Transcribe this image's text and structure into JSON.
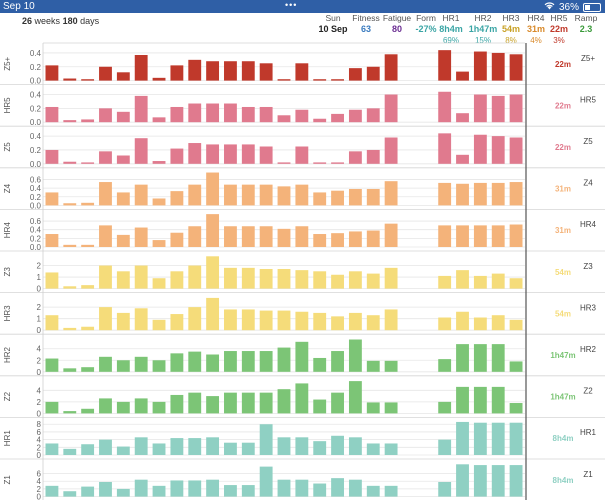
{
  "status_bar": {
    "time": "Sep 10",
    "dots": "•••",
    "battery_percent": "36%",
    "battery_level": 0.36
  },
  "header": {
    "weeks": "26",
    "weeks_label": "weeks",
    "days": "180",
    "days_label": "days",
    "columns": [
      {
        "key": "sun",
        "label": "Sun",
        "value": "10 Sep",
        "pct": "",
        "color": "#222222"
      },
      {
        "key": "fitness",
        "label": "Fitness",
        "value": "63",
        "pct": "",
        "color": "#3a7bbf"
      },
      {
        "key": "fatigue",
        "label": "Fatigue",
        "value": "80",
        "pct": "",
        "color": "#6a2c91"
      },
      {
        "key": "form",
        "label": "Form",
        "value": "-27%",
        "pct": "",
        "color": "#3aa5a5"
      },
      {
        "key": "hr1",
        "label": "HR1",
        "value": "8h4m",
        "pct": "69%",
        "color": "#3aa5a5"
      },
      {
        "key": "hr2",
        "label": "HR2",
        "value": "1h47m",
        "pct": "15%",
        "color": "#3aa5a5"
      },
      {
        "key": "hr3",
        "label": "HR3",
        "value": "54m",
        "pct": "8%",
        "color": "#c9a227"
      },
      {
        "key": "hr4",
        "label": "HR4",
        "value": "31m",
        "pct": "4%",
        "color": "#d98a2b"
      },
      {
        "key": "hr5",
        "label": "HR5",
        "value": "22m",
        "pct": "3%",
        "color": "#c0392b"
      },
      {
        "key": "ramp",
        "label": "Ramp",
        "value": "2.3",
        "pct": "",
        "color": "#3a9a3a"
      }
    ]
  },
  "chart_data": [
    {
      "type": "bar",
      "title": "Z5+",
      "color": "#c0392b",
      "right_value": "22m",
      "right_label": "Z5+",
      "yticks": [
        0,
        0.2,
        0.4
      ],
      "ylim": [
        0,
        0.5
      ],
      "values": [
        0.22,
        0.03,
        0.02,
        0.2,
        0.12,
        0.37,
        0.04,
        0.22,
        0.3,
        0.28,
        0.28,
        0.28,
        0.25,
        0.02,
        0.25,
        0.02,
        0.02,
        0.18,
        0.2,
        0.38,
        0,
        0,
        0.44,
        0.13,
        0.42,
        0.4,
        0.38
      ]
    },
    {
      "type": "bar",
      "title": "HR5",
      "color": "#e07a8e",
      "right_value": "22m",
      "right_label": "HR5",
      "yticks": [
        0,
        0.2,
        0.4
      ],
      "ylim": [
        0,
        0.5
      ],
      "values": [
        0.22,
        0.03,
        0.04,
        0.2,
        0.15,
        0.38,
        0.07,
        0.22,
        0.27,
        0.27,
        0.27,
        0.22,
        0.22,
        0.1,
        0.18,
        0.05,
        0.12,
        0.18,
        0.2,
        0.4,
        0,
        0,
        0.44,
        0.13,
        0.4,
        0.38,
        0.4
      ]
    },
    {
      "type": "bar",
      "title": "Z5",
      "color": "#e07a8e",
      "right_value": "22m",
      "right_label": "Z5",
      "yticks": [
        0,
        0.2,
        0.4
      ],
      "ylim": [
        0,
        0.5
      ],
      "values": [
        0.2,
        0.03,
        0.02,
        0.18,
        0.12,
        0.37,
        0.04,
        0.22,
        0.3,
        0.28,
        0.28,
        0.28,
        0.25,
        0.02,
        0.25,
        0.02,
        0.02,
        0.18,
        0.2,
        0.38,
        0,
        0,
        0.44,
        0.13,
        0.42,
        0.4,
        0.38
      ]
    },
    {
      "type": "bar",
      "title": "Z4",
      "color": "#f4b37a",
      "right_value": "31m",
      "right_label": "Z4",
      "yticks": [
        0,
        0.2,
        0.4,
        0.6
      ],
      "ylim": [
        0,
        0.8
      ],
      "values": [
        0.3,
        0.05,
        0.06,
        0.54,
        0.3,
        0.48,
        0.16,
        0.33,
        0.48,
        0.76,
        0.48,
        0.48,
        0.48,
        0.44,
        0.48,
        0.3,
        0.34,
        0.38,
        0.38,
        0.56,
        0,
        0,
        0.52,
        0.5,
        0.52,
        0.52,
        0.54
      ]
    },
    {
      "type": "bar",
      "title": "HR4",
      "color": "#f4b37a",
      "right_value": "31m",
      "right_label": "HR4",
      "yticks": [
        0,
        0.2,
        0.4,
        0.6
      ],
      "ylim": [
        0,
        0.8
      ],
      "values": [
        0.3,
        0.05,
        0.05,
        0.5,
        0.28,
        0.45,
        0.16,
        0.33,
        0.48,
        0.76,
        0.48,
        0.48,
        0.48,
        0.42,
        0.48,
        0.3,
        0.32,
        0.36,
        0.38,
        0.54,
        0,
        0,
        0.5,
        0.5,
        0.5,
        0.5,
        0.52
      ]
    },
    {
      "type": "bar",
      "title": "Z3",
      "color": "#f5dc7a",
      "right_value": "54m",
      "right_label": "Z3",
      "yticks": [
        0,
        1,
        2
      ],
      "ylim": [
        0,
        3
      ],
      "values": [
        1.4,
        0.2,
        0.3,
        2.0,
        1.5,
        2.0,
        0.9,
        1.5,
        2.0,
        2.8,
        1.8,
        1.8,
        1.7,
        1.7,
        1.6,
        1.5,
        1.2,
        1.5,
        1.3,
        1.8,
        0,
        0,
        1.1,
        1.6,
        1.1,
        1.3,
        0.9
      ]
    },
    {
      "type": "bar",
      "title": "HR3",
      "color": "#f5dc7a",
      "right_value": "54m",
      "right_label": "HR3",
      "yticks": [
        0,
        1,
        2
      ],
      "ylim": [
        0,
        3
      ],
      "values": [
        1.3,
        0.2,
        0.3,
        2.0,
        1.5,
        1.9,
        0.9,
        1.4,
        2.0,
        2.8,
        1.8,
        1.8,
        1.7,
        1.7,
        1.6,
        1.5,
        1.2,
        1.5,
        1.3,
        1.8,
        0,
        0,
        1.1,
        1.6,
        1.1,
        1.3,
        0.9
      ]
    },
    {
      "type": "bar",
      "title": "HR2",
      "color": "#7cc576",
      "right_value": "1h47m",
      "right_label": "HR2",
      "yticks": [
        0,
        2,
        4
      ],
      "ylim": [
        0,
        6
      ],
      "values": [
        2.3,
        0.6,
        0.8,
        2.6,
        2.0,
        2.6,
        2.0,
        3.2,
        3.5,
        3.0,
        3.6,
        3.6,
        3.6,
        4.2,
        5.2,
        2.4,
        3.6,
        5.6,
        1.9,
        1.9,
        0,
        0,
        2.2,
        4.8,
        4.8,
        4.8,
        1.8
      ]
    },
    {
      "type": "bar",
      "title": "Z2",
      "color": "#7cc576",
      "right_value": "1h47m",
      "right_label": "Z2",
      "yticks": [
        0,
        2,
        4
      ],
      "ylim": [
        0,
        6
      ],
      "values": [
        2.0,
        0.4,
        0.8,
        2.6,
        2.0,
        2.6,
        2.0,
        3.2,
        3.6,
        3.0,
        3.6,
        3.6,
        3.6,
        4.2,
        5.2,
        2.4,
        3.6,
        5.6,
        1.9,
        1.9,
        0,
        0,
        2.0,
        4.6,
        4.6,
        4.6,
        1.8
      ]
    },
    {
      "type": "bar",
      "title": "HR1",
      "color": "#8fd0c3",
      "right_value": "8h4m",
      "right_label": "HR1",
      "yticks": [
        0,
        2,
        4,
        6,
        8
      ],
      "ylim": [
        0,
        9
      ],
      "values": [
        3.0,
        1.6,
        2.8,
        4.0,
        2.2,
        4.6,
        3.0,
        4.4,
        4.4,
        4.6,
        3.2,
        3.2,
        8.0,
        4.6,
        4.6,
        3.6,
        5.0,
        4.6,
        3.0,
        3.0,
        0,
        0,
        4.0,
        8.6,
        8.4,
        8.4,
        8.4
      ]
    },
    {
      "type": "bar",
      "title": "Z1",
      "color": "#8fd0c3",
      "right_value": "8h4m",
      "right_label": "Z1",
      "yticks": [
        0,
        2,
        4,
        6
      ],
      "ylim": [
        0,
        9
      ],
      "values": [
        2.8,
        1.4,
        2.6,
        3.8,
        2.0,
        4.4,
        2.8,
        4.2,
        4.2,
        4.4,
        3.0,
        3.0,
        7.8,
        4.4,
        4.4,
        3.4,
        4.8,
        4.4,
        2.8,
        2.8,
        0,
        0,
        3.8,
        8.4,
        8.2,
        8.2,
        8.2
      ]
    }
  ]
}
